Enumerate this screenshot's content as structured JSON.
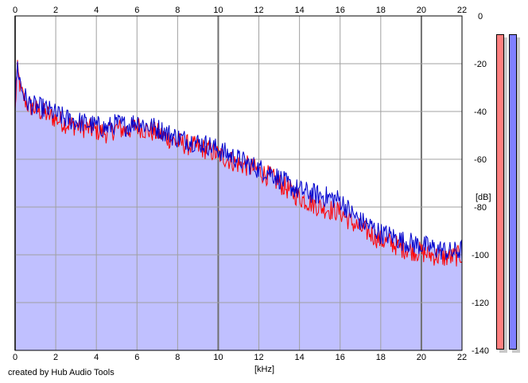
{
  "chart_data": {
    "type": "area",
    "title": "",
    "xlabel": "[kHz]",
    "ylabel": "[dB]",
    "xlim": [
      0,
      22
    ],
    "ylim": [
      -140,
      0
    ],
    "x_ticks": [
      0,
      2,
      4,
      6,
      8,
      10,
      12,
      14,
      16,
      18,
      20,
      22
    ],
    "y_ticks": [
      0,
      -20,
      -40,
      -60,
      -80,
      -100,
      -120,
      -140
    ],
    "grid": true,
    "x_axis_top_labels": true,
    "fill_color": "#c0c0ff",
    "series": [
      {
        "color": "#ff0000",
        "x": [
          0,
          0.1,
          0.3,
          0.6,
          1,
          1.5,
          2,
          2.5,
          3,
          3.5,
          4,
          4.5,
          5,
          5.5,
          6,
          6.5,
          7,
          7.5,
          8,
          8.5,
          9,
          9.5,
          10,
          10.5,
          11,
          11.5,
          12,
          12.5,
          13,
          13.5,
          14,
          14.5,
          15,
          15.5,
          16,
          16.5,
          17,
          17.5,
          18,
          18.5,
          19,
          19.5,
          20,
          20.5,
          21,
          21.5,
          22
        ],
        "values": [
          -40,
          -22,
          -32,
          -37,
          -39,
          -41,
          -43,
          -45,
          -46,
          -47,
          -48,
          -49,
          -47,
          -48,
          -46,
          -48,
          -49,
          -51,
          -53,
          -54,
          -55,
          -56,
          -58,
          -60,
          -62,
          -63,
          -65,
          -67,
          -70,
          -73,
          -76,
          -78,
          -80,
          -81,
          -82,
          -86,
          -89,
          -91,
          -94,
          -95,
          -97,
          -98,
          -99,
          -100,
          -101,
          -101,
          -100
        ]
      },
      {
        "color": "#0000cc",
        "x": [
          0,
          0.1,
          0.3,
          0.6,
          1,
          1.5,
          2,
          2.5,
          3,
          3.5,
          4,
          4.5,
          5,
          5.5,
          6,
          6.5,
          7,
          7.5,
          8,
          8.5,
          9,
          9.5,
          10,
          10.5,
          11,
          11.5,
          12,
          12.5,
          13,
          13.5,
          14,
          14.5,
          15,
          15.5,
          16,
          16.5,
          17,
          17.5,
          18,
          18.5,
          19,
          19.5,
          20,
          20.5,
          21,
          21.5,
          22
        ],
        "values": [
          -38,
          -20,
          -30,
          -36,
          -38,
          -39,
          -41,
          -43,
          -44,
          -45,
          -46,
          -47,
          -45,
          -46,
          -44,
          -46,
          -47,
          -49,
          -51,
          -52,
          -53,
          -54,
          -56,
          -58,
          -60,
          -62,
          -64,
          -65,
          -68,
          -71,
          -73,
          -74,
          -75,
          -76,
          -77,
          -82,
          -86,
          -88,
          -91,
          -92,
          -94,
          -95,
          -96,
          -97,
          -98,
          -99,
          -98
        ]
      }
    ],
    "level_meters": [
      {
        "color": "#ff8080",
        "level": 1.0
      },
      {
        "color": "#8080ff",
        "level": 1.0
      }
    ]
  },
  "footer": {
    "credit": "created by Hub Audio Tools"
  }
}
